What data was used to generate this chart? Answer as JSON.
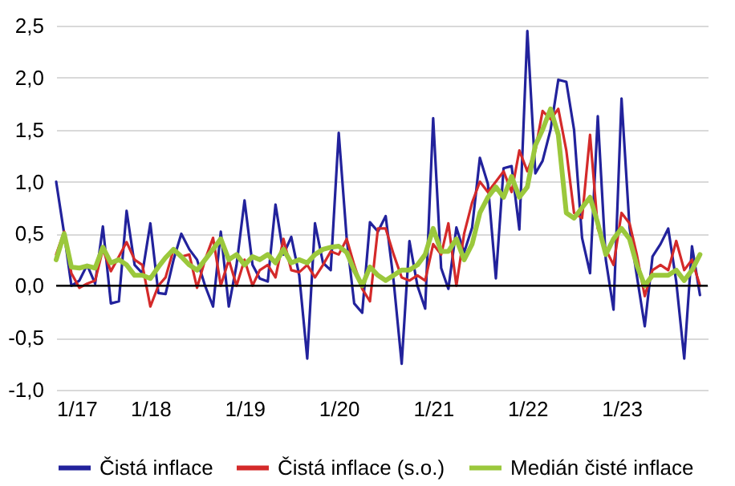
{
  "chart_data": {
    "type": "line",
    "x": [
      "2017-01",
      "2017-02",
      "2017-03",
      "2017-04",
      "2017-05",
      "2017-06",
      "2017-07",
      "2017-08",
      "2017-09",
      "2017-10",
      "2017-11",
      "2017-12",
      "2018-01",
      "2018-02",
      "2018-03",
      "2018-04",
      "2018-05",
      "2018-06",
      "2018-07",
      "2018-08",
      "2018-09",
      "2018-10",
      "2018-11",
      "2018-12",
      "2019-01",
      "2019-02",
      "2019-03",
      "2019-04",
      "2019-05",
      "2019-06",
      "2019-07",
      "2019-08",
      "2019-09",
      "2019-10",
      "2019-11",
      "2019-12",
      "2020-01",
      "2020-02",
      "2020-03",
      "2020-04",
      "2020-05",
      "2020-06",
      "2020-07",
      "2020-08",
      "2020-09",
      "2020-10",
      "2020-11",
      "2020-12",
      "2021-01",
      "2021-02",
      "2021-03",
      "2021-04",
      "2021-05",
      "2021-06",
      "2021-07",
      "2021-08",
      "2021-09",
      "2021-10",
      "2021-11",
      "2021-12",
      "2022-01",
      "2022-02",
      "2022-03",
      "2022-04",
      "2022-05",
      "2022-06",
      "2022-07",
      "2022-08",
      "2022-09",
      "2022-10",
      "2022-11",
      "2022-12",
      "2023-01",
      "2023-02",
      "2023-03",
      "2023-04",
      "2023-05",
      "2023-06",
      "2023-07",
      "2023-08",
      "2023-09",
      "2023-10",
      "2023-11"
    ],
    "series": [
      {
        "name": "Čistá inflace",
        "color": "#22229c",
        "values": [
          1.0,
          0.5,
          0.0,
          0.05,
          0.2,
          0.02,
          0.57,
          -0.17,
          -0.15,
          0.72,
          0.2,
          0.12,
          0.6,
          -0.07,
          -0.08,
          0.25,
          0.5,
          0.35,
          0.25,
          0.0,
          -0.2,
          0.52,
          -0.2,
          0.2,
          0.82,
          0.2,
          0.07,
          0.04,
          0.78,
          0.3,
          0.47,
          0.1,
          -0.7,
          0.6,
          0.22,
          0.15,
          1.47,
          0.45,
          -0.17,
          -0.26,
          0.61,
          0.52,
          0.67,
          0.04,
          -0.75,
          0.43,
          0.0,
          -0.22,
          1.61,
          0.17,
          -0.03,
          0.56,
          0.32,
          0.56,
          1.23,
          0.98,
          0.07,
          1.13,
          1.15,
          0.54,
          2.45,
          1.08,
          1.2,
          1.5,
          1.98,
          1.96,
          1.5,
          0.46,
          0.12,
          1.63,
          0.25,
          -0.23,
          1.8,
          0.56,
          0.1,
          -0.39,
          0.28,
          0.4,
          0.55,
          0.04,
          -0.7,
          0.38,
          -0.09
        ]
      },
      {
        "name": "Čistá inflace (s.o.)",
        "color": "#d42a2a",
        "values": [
          0.3,
          0.52,
          0.12,
          -0.02,
          0.02,
          0.05,
          0.35,
          0.14,
          0.28,
          0.42,
          0.25,
          0.2,
          -0.2,
          0.0,
          0.08,
          0.35,
          0.28,
          0.3,
          -0.02,
          0.25,
          0.46,
          0.0,
          0.25,
          0.0,
          0.25,
          0.0,
          0.15,
          0.2,
          0.08,
          0.45,
          0.15,
          0.13,
          0.2,
          0.08,
          0.2,
          0.33,
          0.3,
          0.45,
          0.2,
          -0.03,
          -0.15,
          0.55,
          0.55,
          0.3,
          0.08,
          0.05,
          0.1,
          0.05,
          0.4,
          0.3,
          0.6,
          0.0,
          0.5,
          0.8,
          1.0,
          0.9,
          1.0,
          1.1,
          0.9,
          1.3,
          1.1,
          1.3,
          1.68,
          1.6,
          1.7,
          1.3,
          0.7,
          0.65,
          1.45,
          0.55,
          0.35,
          0.2,
          0.7,
          0.6,
          0.3,
          -0.1,
          0.15,
          0.2,
          0.15,
          0.43,
          0.15,
          0.25,
          0.0
        ]
      },
      {
        "name": "Medián čisté inflace",
        "color": "#9bc83c",
        "values": [
          0.25,
          0.5,
          0.18,
          0.17,
          0.19,
          0.17,
          0.37,
          0.22,
          0.25,
          0.2,
          0.1,
          0.1,
          0.07,
          0.18,
          0.27,
          0.35,
          0.28,
          0.2,
          0.15,
          0.25,
          0.35,
          0.45,
          0.25,
          0.3,
          0.2,
          0.28,
          0.25,
          0.3,
          0.22,
          0.35,
          0.22,
          0.25,
          0.22,
          0.3,
          0.35,
          0.37,
          0.38,
          0.32,
          0.15,
          0.0,
          0.18,
          0.1,
          0.05,
          0.1,
          0.15,
          0.15,
          0.2,
          0.3,
          0.55,
          0.33,
          0.33,
          0.45,
          0.25,
          0.4,
          0.7,
          0.85,
          0.95,
          0.85,
          1.05,
          0.85,
          0.95,
          1.35,
          1.5,
          1.7,
          1.45,
          0.7,
          0.65,
          0.75,
          0.85,
          0.6,
          0.3,
          0.45,
          0.55,
          0.45,
          0.2,
          0.0,
          0.1,
          0.1,
          0.1,
          0.15,
          0.05,
          0.15,
          0.3
        ]
      }
    ],
    "xlim": [
      "2017-01",
      "2023-12"
    ],
    "xticks": [
      {
        "value": "2017-01",
        "label": "1/17"
      },
      {
        "value": "2018-01",
        "label": "1/18"
      },
      {
        "value": "2019-01",
        "label": "1/19"
      },
      {
        "value": "2020-01",
        "label": "1/20"
      },
      {
        "value": "2021-01",
        "label": "1/21"
      },
      {
        "value": "2022-01",
        "label": "1/22"
      },
      {
        "value": "2023-01",
        "label": "1/23"
      }
    ],
    "ylim": [
      -1.0,
      2.5
    ],
    "yticks": [
      {
        "value": -1.0,
        "label": "-1,0"
      },
      {
        "value": -0.5,
        "label": "-0,5"
      },
      {
        "value": 0,
        "label": "0,0"
      },
      {
        "value": 0.5,
        "label": "0,5"
      },
      {
        "value": 1.0,
        "label": "1,0"
      },
      {
        "value": 1.5,
        "label": "1,5"
      },
      {
        "value": 2.0,
        "label": "2,0"
      },
      {
        "value": 2.5,
        "label": "2,5"
      }
    ],
    "grid": "y",
    "ref_lines": [
      {
        "axis": "y",
        "value": 0,
        "color": "#000000"
      }
    ],
    "legend": "bottom",
    "marker": "none",
    "line_style": "solid"
  }
}
